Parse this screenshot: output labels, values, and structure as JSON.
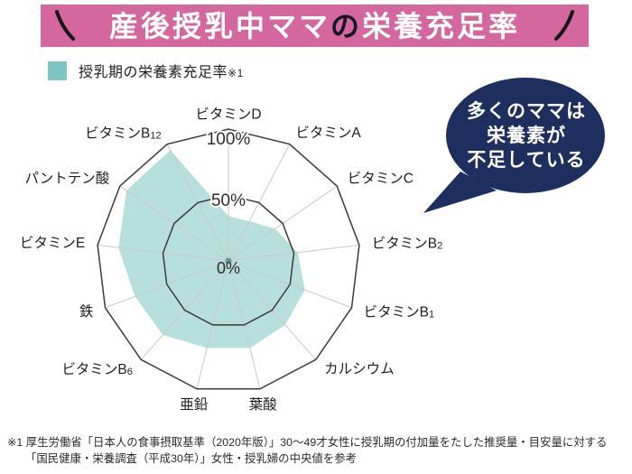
{
  "title": {
    "part_main": "産後授乳中ママ",
    "part_particle": "の",
    "part_rest": "栄養充足率"
  },
  "legend": {
    "label": "授乳期の栄養素充足率",
    "note_ref": "※1"
  },
  "bubble": {
    "lines": [
      "多くのママは",
      "栄養素が",
      "不足している"
    ]
  },
  "footnote": {
    "line1": "※1 厚生労働省「日本人の食事摂取基準（2020年版）」30～49才女性に授乳期の付加量をたした推奨量・目安量に対する",
    "line2": "「国民健康・栄養調査（平成30年）」女性・授乳婦の中央値を参考"
  },
  "colors": {
    "title_bar_pink": "#d4679e",
    "accent_stroke_black": "#161616",
    "legend_teal": "#7fc6c2",
    "radar_fill_teal": "#b7e0dc",
    "bubble_navy": "#1e2f5f",
    "ring_stroke": "#3b3b3b",
    "axis_line_gray": "#c9c9c9",
    "center_dot": "#5f9b99"
  },
  "chart_data": {
    "type": "radar",
    "title": "授乳期の栄養素充足率",
    "categories": [
      "ビタミンD",
      "ビタミンA",
      "ビタミンC",
      "ビタミンB2",
      "ビタミンB1",
      "カルシウム",
      "葉酸",
      "亜鉛",
      "ビタミンB6",
      "鉄",
      "ビタミンE",
      "パントテン酸",
      "ビタミンB12"
    ],
    "series": [
      {
        "name": "授乳期の栄養素充足率",
        "values": [
          34,
          34,
          43,
          53,
          62,
          65,
          68,
          68,
          75,
          76,
          84,
          94,
          95
        ]
      }
    ],
    "axis_ticks": [
      "100%",
      "50%",
      "0%"
    ],
    "rlim": [
      0,
      100
    ],
    "grid_rings_percent": [
      100,
      50
    ],
    "start_axis": "top",
    "direction": "clockwise",
    "legend_position": "top-left"
  }
}
